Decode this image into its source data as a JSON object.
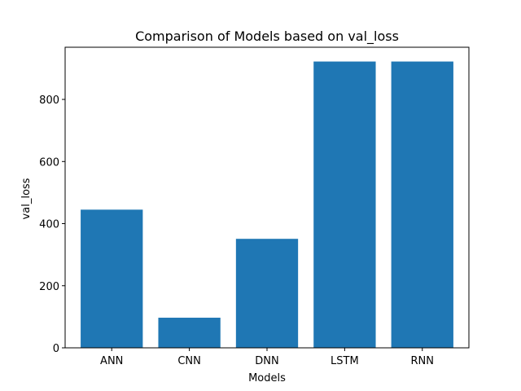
{
  "chart_data": {
    "type": "bar",
    "title": "Comparison of Models based on val_loss",
    "xlabel": "Models",
    "ylabel": "val_loss",
    "categories": [
      "ANN",
      "CNN",
      "DNN",
      "LSTM",
      "RNN"
    ],
    "values": [
      445,
      97,
      351,
      922,
      922
    ],
    "ylim": [
      0,
      968
    ],
    "yticks": [
      0,
      200,
      400,
      600,
      800
    ],
    "grid": false,
    "legend": "none",
    "bar_color": "#1f77b4"
  }
}
